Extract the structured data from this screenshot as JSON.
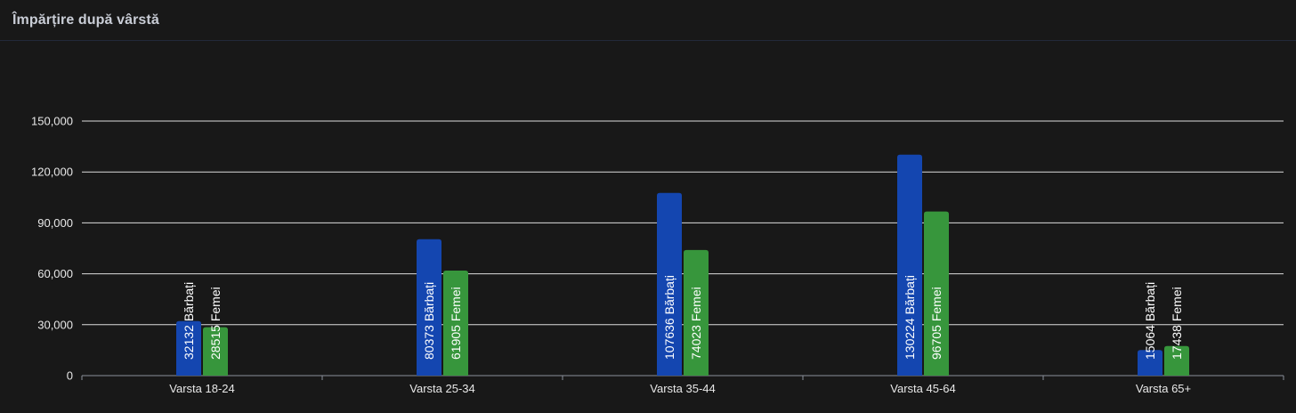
{
  "panel": {
    "title": "Împărțire după vârstă"
  },
  "colors": {
    "male": "#1446b0",
    "female": "#37963c",
    "grid": "#ffffff",
    "background": "#181818"
  },
  "chart_data": {
    "type": "bar",
    "title": "Împărțire după vârstă",
    "categories": [
      "Varsta 18-24",
      "Varsta 25-34",
      "Varsta 35-44",
      "Varsta 45-64",
      "Varsta 65+"
    ],
    "series": [
      {
        "name": "Bărbați",
        "values": [
          32132,
          80373,
          107636,
          130224,
          15064
        ]
      },
      {
        "name": "Femei",
        "values": [
          28515,
          61905,
          74023,
          96705,
          17438
        ]
      }
    ],
    "ylim": [
      0,
      150000
    ],
    "yticks": [
      0,
      30000,
      60000,
      90000,
      120000,
      150000
    ],
    "ytick_labels": [
      "0",
      "30,000",
      "60,000",
      "90,000",
      "120,000",
      "150,000"
    ],
    "grid": true,
    "legend": "none",
    "xlabel": "",
    "ylabel": ""
  }
}
